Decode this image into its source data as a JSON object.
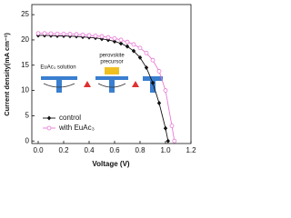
{
  "chart_data": {
    "type": "line",
    "xlabel": "Voltage (V)",
    "ylabel": "Current density(mA cm⁻²)",
    "xlim": [
      -0.05,
      1.2
    ],
    "ylim": [
      -0.5,
      27
    ],
    "xticks": [
      {
        "value": 0,
        "label": "0.0"
      },
      0.2,
      0.4,
      0.6,
      0.8,
      {
        "value": 1,
        "label": "1.0"
      },
      1.2
    ],
    "yticks": [
      0,
      5,
      10,
      15,
      20,
      25
    ],
    "legend": "lower left",
    "series": [
      {
        "name": "control",
        "color": "#111111",
        "marker": "diamond",
        "x": [
          0,
          0.05,
          0.1,
          0.15,
          0.2,
          0.25,
          0.3,
          0.35,
          0.4,
          0.45,
          0.5,
          0.55,
          0.6,
          0.65,
          0.7,
          0.75,
          0.8,
          0.85,
          0.9,
          0.95,
          1.0,
          1.02
        ],
        "values": [
          20.9,
          20.9,
          20.85,
          20.8,
          20.8,
          20.75,
          20.7,
          20.6,
          20.5,
          20.4,
          20.2,
          20.0,
          19.7,
          19.3,
          18.7,
          17.8,
          16.5,
          14.5,
          11.5,
          7.5,
          2.5,
          0
        ]
      },
      {
        "name": "with EuAc₃",
        "color": "#e879d6",
        "marker": "circle",
        "x": [
          0,
          0.05,
          0.1,
          0.15,
          0.2,
          0.25,
          0.3,
          0.35,
          0.4,
          0.45,
          0.5,
          0.55,
          0.6,
          0.65,
          0.7,
          0.75,
          0.8,
          0.85,
          0.9,
          0.95,
          1.0,
          1.05,
          1.07
        ],
        "values": [
          21.3,
          21.3,
          21.25,
          21.2,
          21.2,
          21.15,
          21.1,
          21.0,
          20.9,
          20.8,
          20.7,
          20.5,
          20.3,
          20.0,
          19.6,
          19.1,
          18.4,
          17.4,
          16.0,
          13.8,
          10.0,
          3.0,
          0
        ]
      }
    ],
    "inset_texts": [
      "EuAc₃ solution",
      "perovskite",
      "precursor"
    ]
  }
}
